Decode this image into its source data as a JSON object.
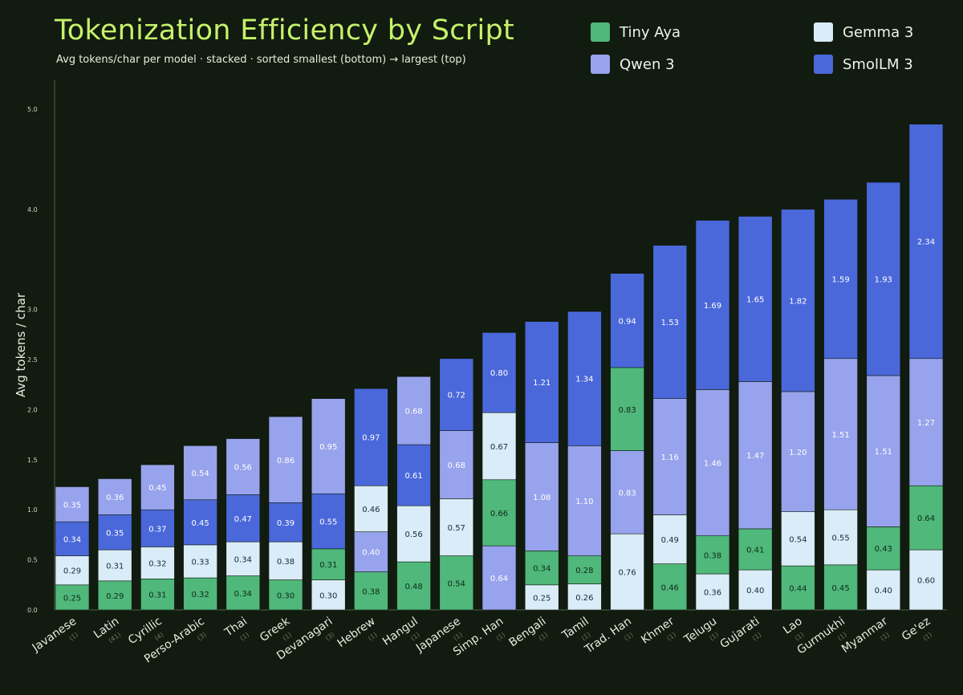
{
  "header": {
    "title": "Tokenization Efficiency by Script",
    "subtitle": "Avg tokens/char per model · stacked · sorted smallest (bottom) → largest (top)"
  },
  "colors": {
    "background": "#111b0f",
    "Tiny Aya": "#4fb87a",
    "Gemma 3": "#d9ecf7",
    "Qwen 3": "#97a3ec",
    "SmolLM 3": "#4a68da"
  },
  "legend": [
    {
      "name": "Tiny Aya"
    },
    {
      "name": "Gemma 3"
    },
    {
      "name": "Qwen 3"
    },
    {
      "name": "SmolLM 3"
    }
  ],
  "chart_data": {
    "type": "bar",
    "stacked": true,
    "ylabel": "Avg tokens / char",
    "ylim": [
      0,
      5.0
    ],
    "yticks": [
      "0.0",
      "0.5",
      "1.0",
      "1.5",
      "2.0",
      "2.5",
      "3.0",
      "4.0",
      "5.0"
    ],
    "categories": [
      "Javanese",
      "Latin",
      "Cyrillic",
      "Perso-Arabic",
      "Thai",
      "Greek",
      "Devanagari",
      "Hebrew",
      "Hangul",
      "Japanese",
      "Simp. Han",
      "Bengali",
      "Tamil",
      "Trad. Han",
      "Khmer",
      "Telugu",
      "Gujarati",
      "Lao",
      "Gurmukhi",
      "Myanmar",
      "Ge'ez"
    ],
    "category_sublabels": [
      "(1)",
      "(41)",
      "(4)",
      "(3)",
      "(1)",
      "(1)",
      "(3)",
      "(1)",
      "(1)",
      "(1)",
      "(1)",
      "(1)",
      "(1)",
      "(1)",
      "(1)",
      "(1)",
      "(1)",
      "(1)",
      "(1)",
      "(1)",
      "(1)"
    ],
    "stacks": [
      [
        {
          "model": "Tiny Aya",
          "value": 0.25,
          "label": "0.25"
        },
        {
          "model": "Gemma 3",
          "value": 0.29,
          "label": "0.29"
        },
        {
          "model": "SmolLM 3",
          "value": 0.34,
          "label": "0.34"
        },
        {
          "model": "Qwen 3",
          "value": 0.35,
          "label": "0.35"
        }
      ],
      [
        {
          "model": "Tiny Aya",
          "value": 0.29,
          "label": "0.29"
        },
        {
          "model": "Gemma 3",
          "value": 0.31,
          "label": "0.31"
        },
        {
          "model": "SmolLM 3",
          "value": 0.35,
          "label": "0.35"
        },
        {
          "model": "Qwen 3",
          "value": 0.36,
          "label": "0.36"
        }
      ],
      [
        {
          "model": "Tiny Aya",
          "value": 0.31,
          "label": "0.31"
        },
        {
          "model": "Gemma 3",
          "value": 0.32,
          "label": "0.32"
        },
        {
          "model": "SmolLM 3",
          "value": 0.37,
          "label": "0.37"
        },
        {
          "model": "Qwen 3",
          "value": 0.45,
          "label": "0.45"
        }
      ],
      [
        {
          "model": "Tiny Aya",
          "value": 0.32,
          "label": "0.32"
        },
        {
          "model": "Gemma 3",
          "value": 0.33,
          "label": "0.33"
        },
        {
          "model": "SmolLM 3",
          "value": 0.45,
          "label": "0.45"
        },
        {
          "model": "Qwen 3",
          "value": 0.54,
          "label": "0.54"
        }
      ],
      [
        {
          "model": "Tiny Aya",
          "value": 0.34,
          "label": "0.34"
        },
        {
          "model": "Gemma 3",
          "value": 0.34,
          "label": "0.34"
        },
        {
          "model": "SmolLM 3",
          "value": 0.47,
          "label": "0.47"
        },
        {
          "model": "Qwen 3",
          "value": 0.56,
          "label": "0.56"
        }
      ],
      [
        {
          "model": "Tiny Aya",
          "value": 0.3,
          "label": "0.30"
        },
        {
          "model": "Gemma 3",
          "value": 0.38,
          "label": "0.38"
        },
        {
          "model": "SmolLM 3",
          "value": 0.39,
          "label": "0.39"
        },
        {
          "model": "Qwen 3",
          "value": 0.86,
          "label": "0.86"
        }
      ],
      [
        {
          "model": "Gemma 3",
          "value": 0.3,
          "label": "0.30"
        },
        {
          "model": "Tiny Aya",
          "value": 0.31,
          "label": "0.31"
        },
        {
          "model": "SmolLM 3",
          "value": 0.55,
          "label": "0.55"
        },
        {
          "model": "Qwen 3",
          "value": 0.95,
          "label": "0.95"
        }
      ],
      [
        {
          "model": "Tiny Aya",
          "value": 0.38,
          "label": "0.38"
        },
        {
          "model": "Qwen 3",
          "value": 0.4,
          "label": "0.40"
        },
        {
          "model": "Gemma 3",
          "value": 0.46,
          "label": "0.46"
        },
        {
          "model": "SmolLM 3",
          "value": 0.97,
          "label": "0.97"
        }
      ],
      [
        {
          "model": "Tiny Aya",
          "value": 0.48,
          "label": "0.48"
        },
        {
          "model": "Gemma 3",
          "value": 0.56,
          "label": "0.56"
        },
        {
          "model": "SmolLM 3",
          "value": 0.61,
          "label": "0.61"
        },
        {
          "model": "Qwen 3",
          "value": 0.68,
          "label": "0.68"
        }
      ],
      [
        {
          "model": "Tiny Aya",
          "value": 0.54,
          "label": "0.54"
        },
        {
          "model": "Gemma 3",
          "value": 0.57,
          "label": "0.57"
        },
        {
          "model": "Qwen 3",
          "value": 0.68,
          "label": "0.68"
        },
        {
          "model": "SmolLM 3",
          "value": 0.72,
          "label": "0.72"
        }
      ],
      [
        {
          "model": "Qwen 3",
          "value": 0.64,
          "label": "0.64"
        },
        {
          "model": "Tiny Aya",
          "value": 0.66,
          "label": "0.66"
        },
        {
          "model": "Gemma 3",
          "value": 0.67,
          "label": "0.67"
        },
        {
          "model": "SmolLM 3",
          "value": 0.8,
          "label": "0.80"
        }
      ],
      [
        {
          "model": "Gemma 3",
          "value": 0.25,
          "label": "0.25"
        },
        {
          "model": "Tiny Aya",
          "value": 0.34,
          "label": "0.34"
        },
        {
          "model": "Qwen 3",
          "value": 1.08,
          "label": "1.08"
        },
        {
          "model": "SmolLM 3",
          "value": 1.21,
          "label": "1.21"
        }
      ],
      [
        {
          "model": "Gemma 3",
          "value": 0.26,
          "label": "0.26"
        },
        {
          "model": "Tiny Aya",
          "value": 0.28,
          "label": "0.28"
        },
        {
          "model": "Qwen 3",
          "value": 1.1,
          "label": "1.10"
        },
        {
          "model": "SmolLM 3",
          "value": 1.34,
          "label": "1.34"
        }
      ],
      [
        {
          "model": "Gemma 3",
          "value": 0.76,
          "label": "0.76"
        },
        {
          "model": "Qwen 3",
          "value": 0.83,
          "label": "0.83"
        },
        {
          "model": "Tiny Aya",
          "value": 0.83,
          "label": "0.83"
        },
        {
          "model": "SmolLM 3",
          "value": 0.94,
          "label": "0.94"
        }
      ],
      [
        {
          "model": "Tiny Aya",
          "value": 0.46,
          "label": "0.46"
        },
        {
          "model": "Gemma 3",
          "value": 0.49,
          "label": "0.49"
        },
        {
          "model": "Qwen 3",
          "value": 1.16,
          "label": "1.16"
        },
        {
          "model": "SmolLM 3",
          "value": 1.53,
          "label": "1.53"
        }
      ],
      [
        {
          "model": "Gemma 3",
          "value": 0.36,
          "label": "0.36"
        },
        {
          "model": "Tiny Aya",
          "value": 0.38,
          "label": "0.38"
        },
        {
          "model": "Qwen 3",
          "value": 1.46,
          "label": "1.46"
        },
        {
          "model": "SmolLM 3",
          "value": 1.69,
          "label": "1.69"
        }
      ],
      [
        {
          "model": "Gemma 3",
          "value": 0.4,
          "label": "0.40"
        },
        {
          "model": "Tiny Aya",
          "value": 0.41,
          "label": "0.41"
        },
        {
          "model": "Qwen 3",
          "value": 1.47,
          "label": "1.47"
        },
        {
          "model": "SmolLM 3",
          "value": 1.65,
          "label": "1.65"
        }
      ],
      [
        {
          "model": "Tiny Aya",
          "value": 0.44,
          "label": "0.44"
        },
        {
          "model": "Gemma 3",
          "value": 0.54,
          "label": "0.54"
        },
        {
          "model": "Qwen 3",
          "value": 1.2,
          "label": "1.20"
        },
        {
          "model": "SmolLM 3",
          "value": 1.82,
          "label": "1.82"
        }
      ],
      [
        {
          "model": "Tiny Aya",
          "value": 0.45,
          "label": "0.45"
        },
        {
          "model": "Gemma 3",
          "value": 0.55,
          "label": "0.55"
        },
        {
          "model": "Qwen 3",
          "value": 1.51,
          "label": "1.51"
        },
        {
          "model": "SmolLM 3",
          "value": 1.59,
          "label": "1.59"
        }
      ],
      [
        {
          "model": "Gemma 3",
          "value": 0.4,
          "label": "0.40"
        },
        {
          "model": "Tiny Aya",
          "value": 0.43,
          "label": "0.43"
        },
        {
          "model": "Qwen 3",
          "value": 1.51,
          "label": "1.51"
        },
        {
          "model": "SmolLM 3",
          "value": 1.93,
          "label": "1.93"
        }
      ],
      [
        {
          "model": "Gemma 3",
          "value": 0.6,
          "label": "0.60"
        },
        {
          "model": "Tiny Aya",
          "value": 0.64,
          "label": "0.64"
        },
        {
          "model": "Qwen 3",
          "value": 1.27,
          "label": "1.27"
        },
        {
          "model": "SmolLM 3",
          "value": 2.34,
          "label": "2.34"
        }
      ]
    ]
  }
}
